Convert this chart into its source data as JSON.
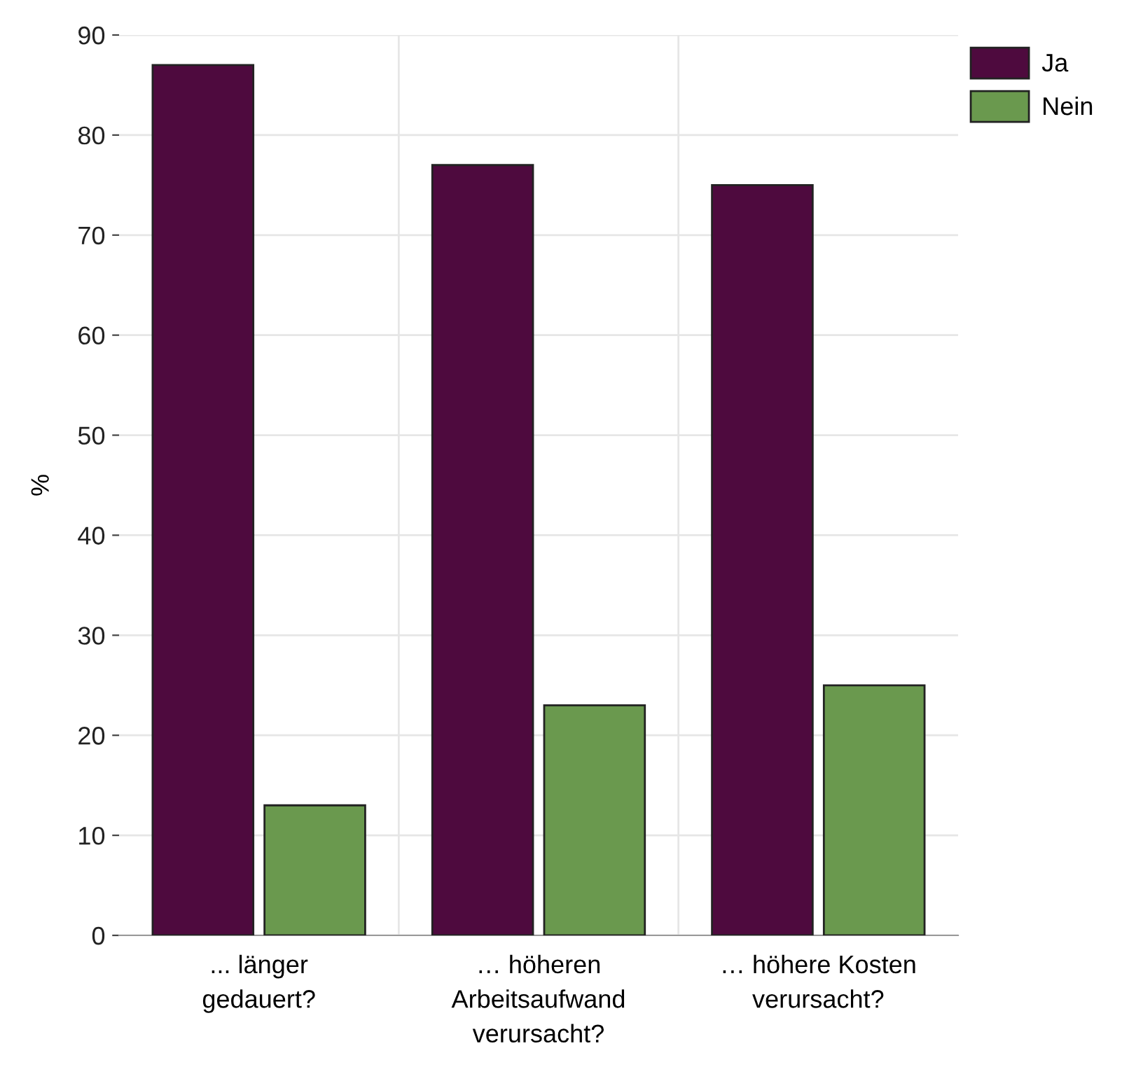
{
  "chart_data": {
    "type": "bar",
    "ylabel": "%",
    "categories": [
      "... länger\ngedauert?",
      "… höheren\nArbeitsaufwand\nverursacht?",
      "… höhere Kosten\nverursacht?"
    ],
    "series": [
      {
        "name": "Ja",
        "color": "#4e0a3e",
        "values": [
          87,
          77,
          75
        ]
      },
      {
        "name": "Nein",
        "color": "#6a994e",
        "values": [
          13,
          23,
          25
        ]
      }
    ],
    "ylim": [
      0,
      90
    ],
    "yticks": [
      0,
      10,
      20,
      30,
      40,
      50,
      60,
      70,
      80,
      90
    ],
    "grid": true,
    "legend": "top right"
  }
}
